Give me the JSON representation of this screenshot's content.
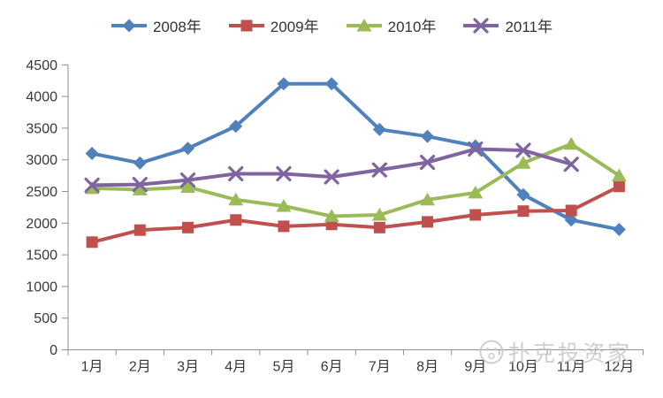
{
  "watermark": {
    "text": "扑克投资家"
  },
  "chart_data": {
    "type": "line",
    "title": "",
    "xlabel": "",
    "ylabel": "",
    "categories": [
      "1月",
      "2月",
      "3月",
      "4月",
      "5月",
      "6月",
      "7月",
      "8月",
      "9月",
      "10月",
      "11月",
      "12月"
    ],
    "y_ticks": [
      0,
      500,
      1000,
      1500,
      2000,
      2500,
      3000,
      3500,
      4000,
      4500
    ],
    "ylim": [
      0,
      4500
    ],
    "grid": false,
    "legend_position": "top",
    "background": "#ffffff",
    "axis_color": "#8f8f8f",
    "text_color": "#383838",
    "series": [
      {
        "name": "2008年",
        "color": "#4F81BD",
        "marker": "diamond",
        "values": [
          3100,
          2950,
          3180,
          3530,
          4200,
          4200,
          3480,
          3370,
          3220,
          2450,
          2050,
          1900
        ]
      },
      {
        "name": "2009年",
        "color": "#C0504D",
        "marker": "square",
        "values": [
          1700,
          1890,
          1930,
          2050,
          1950,
          1980,
          1930,
          2020,
          2130,
          2190,
          2200,
          2580
        ]
      },
      {
        "name": "2010年",
        "color": "#9BBB59",
        "marker": "triangle",
        "values": [
          2550,
          2530,
          2570,
          2370,
          2270,
          2110,
          2130,
          2370,
          2480,
          2950,
          3250,
          2750
        ]
      },
      {
        "name": "2011年",
        "color": "#8064A2",
        "marker": "x",
        "values": [
          2600,
          2610,
          2680,
          2780,
          2780,
          2730,
          2840,
          2960,
          3170,
          3150,
          2930,
          null
        ]
      }
    ]
  }
}
